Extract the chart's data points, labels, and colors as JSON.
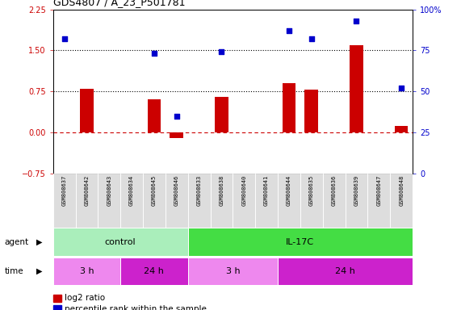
{
  "title": "GDS4807 / A_23_P501781",
  "samples": [
    "GSM808637",
    "GSM808642",
    "GSM808643",
    "GSM808634",
    "GSM808645",
    "GSM808646",
    "GSM808633",
    "GSM808638",
    "GSM808640",
    "GSM808641",
    "GSM808644",
    "GSM808635",
    "GSM808636",
    "GSM808639",
    "GSM808647",
    "GSM808648"
  ],
  "log2_ratio": [
    0.0,
    0.8,
    0.0,
    0.0,
    0.6,
    -0.1,
    0.0,
    0.65,
    0.0,
    0.0,
    0.9,
    0.78,
    0.0,
    1.6,
    0.0,
    0.12
  ],
  "percentile": [
    82,
    0,
    0,
    0,
    73,
    35,
    0,
    74,
    0,
    0,
    87,
    82,
    0,
    93,
    0,
    52
  ],
  "ylim_left": [
    -0.75,
    2.25
  ],
  "ylim_right": [
    0,
    100
  ],
  "yticks_left": [
    -0.75,
    0,
    0.75,
    1.5,
    2.25
  ],
  "yticks_right": [
    0,
    25,
    50,
    75,
    100
  ],
  "bar_color": "#cc0000",
  "dot_color": "#0000cc",
  "agent_groups": [
    {
      "label": "control",
      "start": 0,
      "end": 6,
      "color": "#aaeebb"
    },
    {
      "label": "IL-17C",
      "start": 6,
      "end": 16,
      "color": "#44dd44"
    }
  ],
  "time_groups": [
    {
      "label": "3 h",
      "start": 0,
      "end": 3,
      "color": "#ee88ee"
    },
    {
      "label": "24 h",
      "start": 3,
      "end": 6,
      "color": "#cc22cc"
    },
    {
      "label": "3 h",
      "start": 6,
      "end": 10,
      "color": "#ee88ee"
    },
    {
      "label": "24 h",
      "start": 10,
      "end": 16,
      "color": "#cc22cc"
    }
  ],
  "legend_bar_color": "#cc0000",
  "legend_dot_color": "#0000cc",
  "bg_color": "#ffffff"
}
